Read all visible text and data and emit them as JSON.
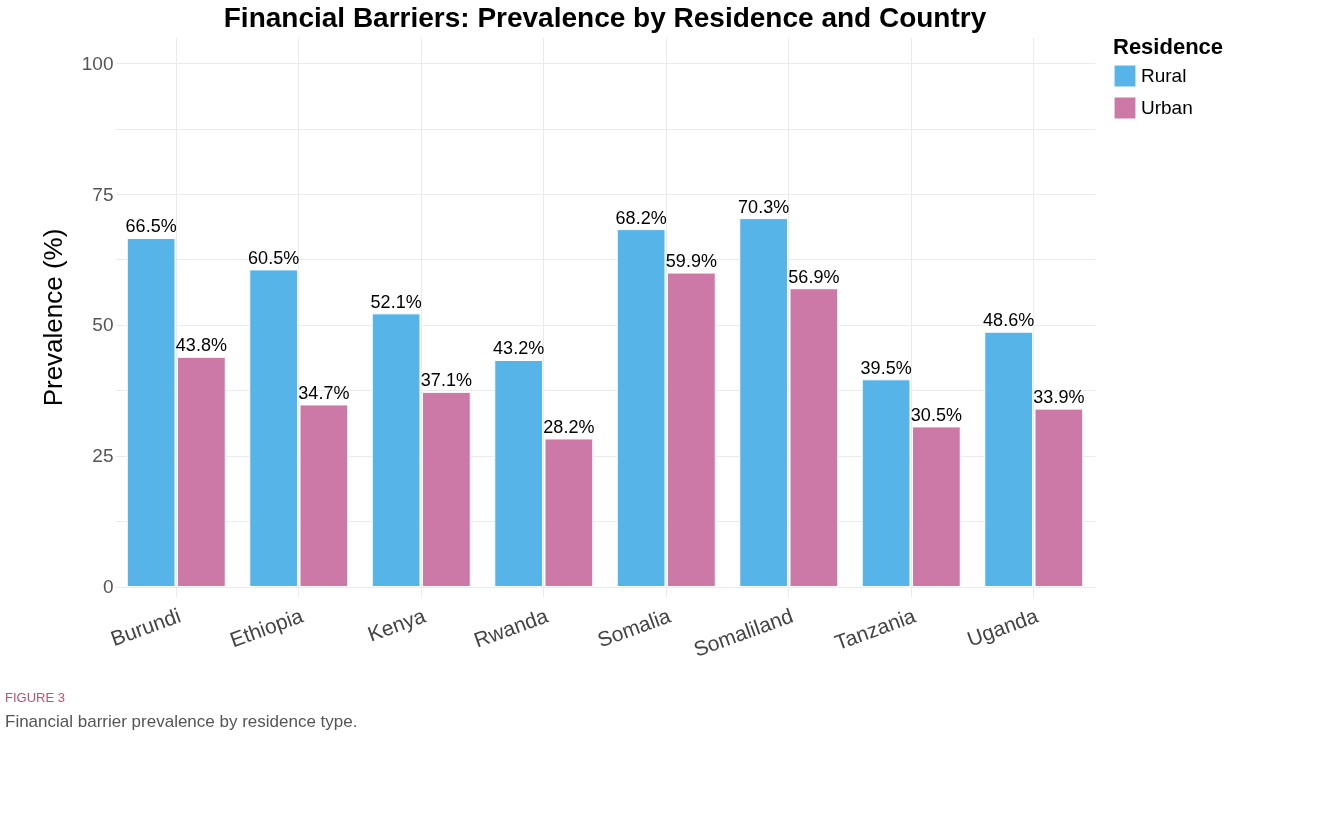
{
  "chart_data": {
    "type": "bar",
    "title": "Financial Barriers: Prevalence by Residence and Country",
    "ylabel": "Prevalence (%)",
    "legend_title": "Residence",
    "categories": [
      "Burundi",
      "Ethiopia",
      "Kenya",
      "Rwanda",
      "Somalia",
      "Somaliland",
      "Tanzania",
      "Uganda"
    ],
    "series": [
      {
        "name": "Rural",
        "color": "#56b4e9",
        "values": [
          66.5,
          60.5,
          52.1,
          43.2,
          68.2,
          70.3,
          39.5,
          48.6
        ],
        "value_labels": [
          "66.5%",
          "60.5%",
          "52.1%",
          "43.2%",
          "68.2%",
          "70.3%",
          "39.5%",
          "48.6%"
        ]
      },
      {
        "name": "Urban",
        "color": "#cc79a7",
        "values": [
          43.8,
          34.7,
          37.1,
          28.2,
          59.9,
          56.9,
          30.5,
          33.9
        ],
        "value_labels": [
          "43.8%",
          "34.7%",
          "37.1%",
          "28.2%",
          "59.9%",
          "56.9%",
          "30.5%",
          "33.9%"
        ]
      }
    ],
    "ylim": [
      -2,
      105
    ],
    "yticks": [
      0,
      {
        "value": 12.5,
        "label": null
      },
      25,
      {
        "value": 37.5,
        "label": null
      },
      50,
      {
        "value": 62.5,
        "label": null
      },
      75,
      {
        "value": 87.5,
        "label": null
      },
      100
    ],
    "grid": true,
    "legend": "right",
    "annotations": [
      "FIGURE 3",
      "Financial barrier prevalence by residence type."
    ]
  }
}
